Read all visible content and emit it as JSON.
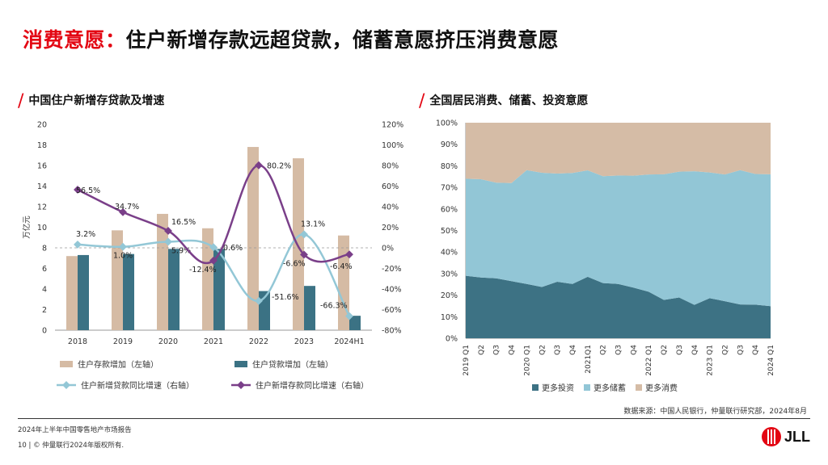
{
  "header": {
    "title_accent": "消费意愿：",
    "title_rest": "住户新增存款远超贷款，储蓄意愿挤压消费意愿"
  },
  "left_panel": {
    "subtitle": "中国住户新增存贷款及增速"
  },
  "right_panel": {
    "subtitle": "全国居民消费、储蓄、投资意愿"
  },
  "source": "数据来源：中国人民银行，仲量联行研究部，2024年8月",
  "footer": {
    "report": "2024年上半年中国零售地产市场报告",
    "copyright": "10 | © 仲量联行2024年版权所有.",
    "logo_text": "JLL"
  },
  "colors": {
    "accent": "#e30613",
    "deposit_bar": "#d5bba4",
    "loan_bar": "#3b7284",
    "loan_growth": "#93c7d6",
    "deposit_growth": "#7a3f89",
    "invest": "#3d7284",
    "save": "#92c6d6",
    "consume": "#d5bca6"
  },
  "chart_data": [
    {
      "type": "bar",
      "categories": [
        "2018",
        "2019",
        "2020",
        "2021",
        "2022",
        "2023",
        "2024H1"
      ],
      "ylabel": "万亿元",
      "ylim": [
        0,
        20
      ],
      "yticks": [
        "0",
        "2",
        "4",
        "6",
        "8",
        "10",
        "12",
        "14",
        "16",
        "18",
        "20"
      ],
      "y2lim": [
        -80,
        120
      ],
      "y2ticks": [
        "-80%",
        "-60%",
        "-40%",
        "-20%",
        "0%",
        "20%",
        "40%",
        "60%",
        "80%",
        "100%",
        "120%"
      ],
      "series": [
        {
          "name": "住户存款增加（左轴）",
          "kind": "bar",
          "axis": "left",
          "values": [
            7.2,
            9.7,
            11.3,
            9.9,
            17.8,
            16.7,
            9.2
          ]
        },
        {
          "name": "住户贷款增加（左轴）",
          "kind": "bar",
          "axis": "left",
          "values": [
            7.3,
            7.4,
            7.9,
            7.9,
            3.8,
            4.3,
            1.4
          ]
        },
        {
          "name": "住户新增贷款同比增速（右轴）",
          "kind": "line",
          "axis": "right",
          "values": [
            3.2,
            1.0,
            5.9,
            0.6,
            -51.6,
            13.1,
            -66.3
          ],
          "labels": [
            "3.2%",
            "1.0%",
            "5.9%",
            "0.6%",
            "-51.6%",
            "13.1%",
            "-66.3%"
          ]
        },
        {
          "name": "住户新增存款同比增速（右轴）",
          "kind": "line",
          "axis": "right",
          "values": [
            56.5,
            34.7,
            16.5,
            -12.4,
            80.2,
            -6.6,
            -6.4
          ],
          "labels": [
            "56.5%",
            "34.7%",
            "16.5%",
            "-12.4%",
            "80.2%",
            "-6.6%",
            "-6.4%"
          ]
        }
      ],
      "reference_line": {
        "axis": "right",
        "value": 0,
        "style": "dashed"
      }
    },
    {
      "type": "area",
      "stacked": true,
      "x": [
        "2019 Q1",
        "Q2",
        "Q3",
        "Q4",
        "2020 Q1",
        "Q2",
        "Q3",
        "Q4",
        "2021Q1",
        "Q2",
        "Q3",
        "Q4",
        "2022 Q1",
        "Q2",
        "Q3",
        "Q4",
        "2023 Q1",
        "Q2",
        "Q3",
        "Q4",
        "2024 Q1"
      ],
      "ylim": [
        0,
        100
      ],
      "yticks": [
        "0%",
        "10%",
        "20%",
        "30%",
        "40%",
        "50%",
        "60%",
        "70%",
        "80%",
        "90%",
        "100%"
      ],
      "legend_position": "bottom",
      "series": [
        {
          "name": "更多投资",
          "values": [
            29,
            28.2,
            27.8,
            26.5,
            25.2,
            23.8,
            26.2,
            25.2,
            28.5,
            25.6,
            25.2,
            23.5,
            21.6,
            17.8,
            18.9,
            15.5,
            18.6,
            17.2,
            15.7,
            15.6,
            14.9
          ]
        },
        {
          "name": "更多储蓄",
          "values": [
            45,
            45.6,
            44.4,
            45.5,
            52.8,
            53.0,
            50.2,
            51.5,
            49.4,
            49.6,
            50.3,
            51.9,
            54.4,
            58.3,
            58.4,
            62.0,
            58.3,
            58.8,
            62.3,
            60.6,
            61.2
          ]
        },
        {
          "name": "更多消费",
          "values": [
            26,
            26.2,
            27.8,
            28.0,
            22.0,
            23.2,
            23.6,
            23.3,
            22.1,
            24.8,
            24.5,
            24.6,
            24.0,
            23.9,
            22.7,
            22.5,
            23.1,
            24.0,
            22.0,
            23.8,
            23.9
          ]
        }
      ]
    }
  ]
}
